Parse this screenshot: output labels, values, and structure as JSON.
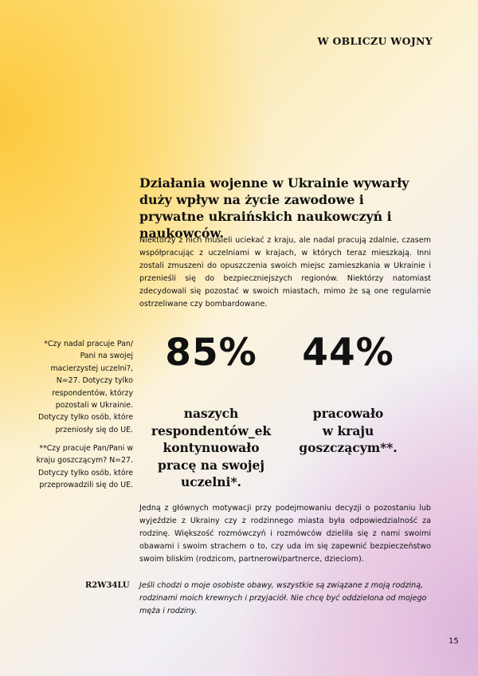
{
  "header": {
    "section": "W OBLICZU WOJNY"
  },
  "heading": "Działania wojenne w Ukrainie wywarły duży wpływ na życie zawodowe i prywatne ukraińskich naukowczyń i naukowców.",
  "intro": "Niektórzy z nich musieli uciekać z kraju, ale nadal pracują zdalnie, czasem współpracując z uczelniami w krajach, w których teraz mieszkają. Inni zostali zmuszeni do opuszczenia swoich miejsc zamieszkania w Ukrainie i przenieśli się do bezpieczniejszych regionów. Niektórzy natomiast zdecydowali się pozostać w swoich miastach, mimo że są one regularnie ostrzeliwane czy bombardowane.",
  "footnotes": [
    {
      "lines": [
        "*Czy nadal pracuje Pan/",
        "Pani na swojej",
        "macierzystej uczelni?,",
        "N=27. Dotyczy tylko",
        "respondentów, którzy",
        "pozostali w Ukrainie.",
        "Dotyczy tylko osób, które",
        "przeniosły się do UE."
      ]
    },
    {
      "lines": [
        "**Czy pracuje Pan/Pani w",
        "kraju goszczącym? N=27.",
        "Dotyczy tylko osób, które",
        "przeprowadzili się do UE."
      ]
    }
  ],
  "stats": [
    {
      "value": "85%",
      "caption": [
        "naszych",
        "respondentów_ek",
        "kontynuowało",
        "pracę na swojej",
        "uczelni*."
      ]
    },
    {
      "value": "44%",
      "caption": [
        "pracowało",
        "w kraju",
        "goszczącym**."
      ]
    }
  ],
  "body": "Jedną z głównych motywacji przy podejmowaniu decyzji o pozostaniu lub wyjeździe z Ukrainy czy z rodzinnego miasta była odpowiedzialność za rodzinę. Większość rozmówczyń i rozmówców dzieliła się z nami swoimi obawami i swoim strachem o to, czy uda im się zapewnić bezpieczeństwo swoim bliskim (rodzicom, partnerowi/partnerce, dzieciom).",
  "quote": {
    "speaker": "R2W34LU",
    "text": "Jeśli chodzi o moje osobiste obawy, wszystkie są związane z moją rodziną, rodzinami moich krewnych i przyjaciół. Nie chcę być oddzielona od mojego męża i rodziny."
  },
  "page_number": "15"
}
